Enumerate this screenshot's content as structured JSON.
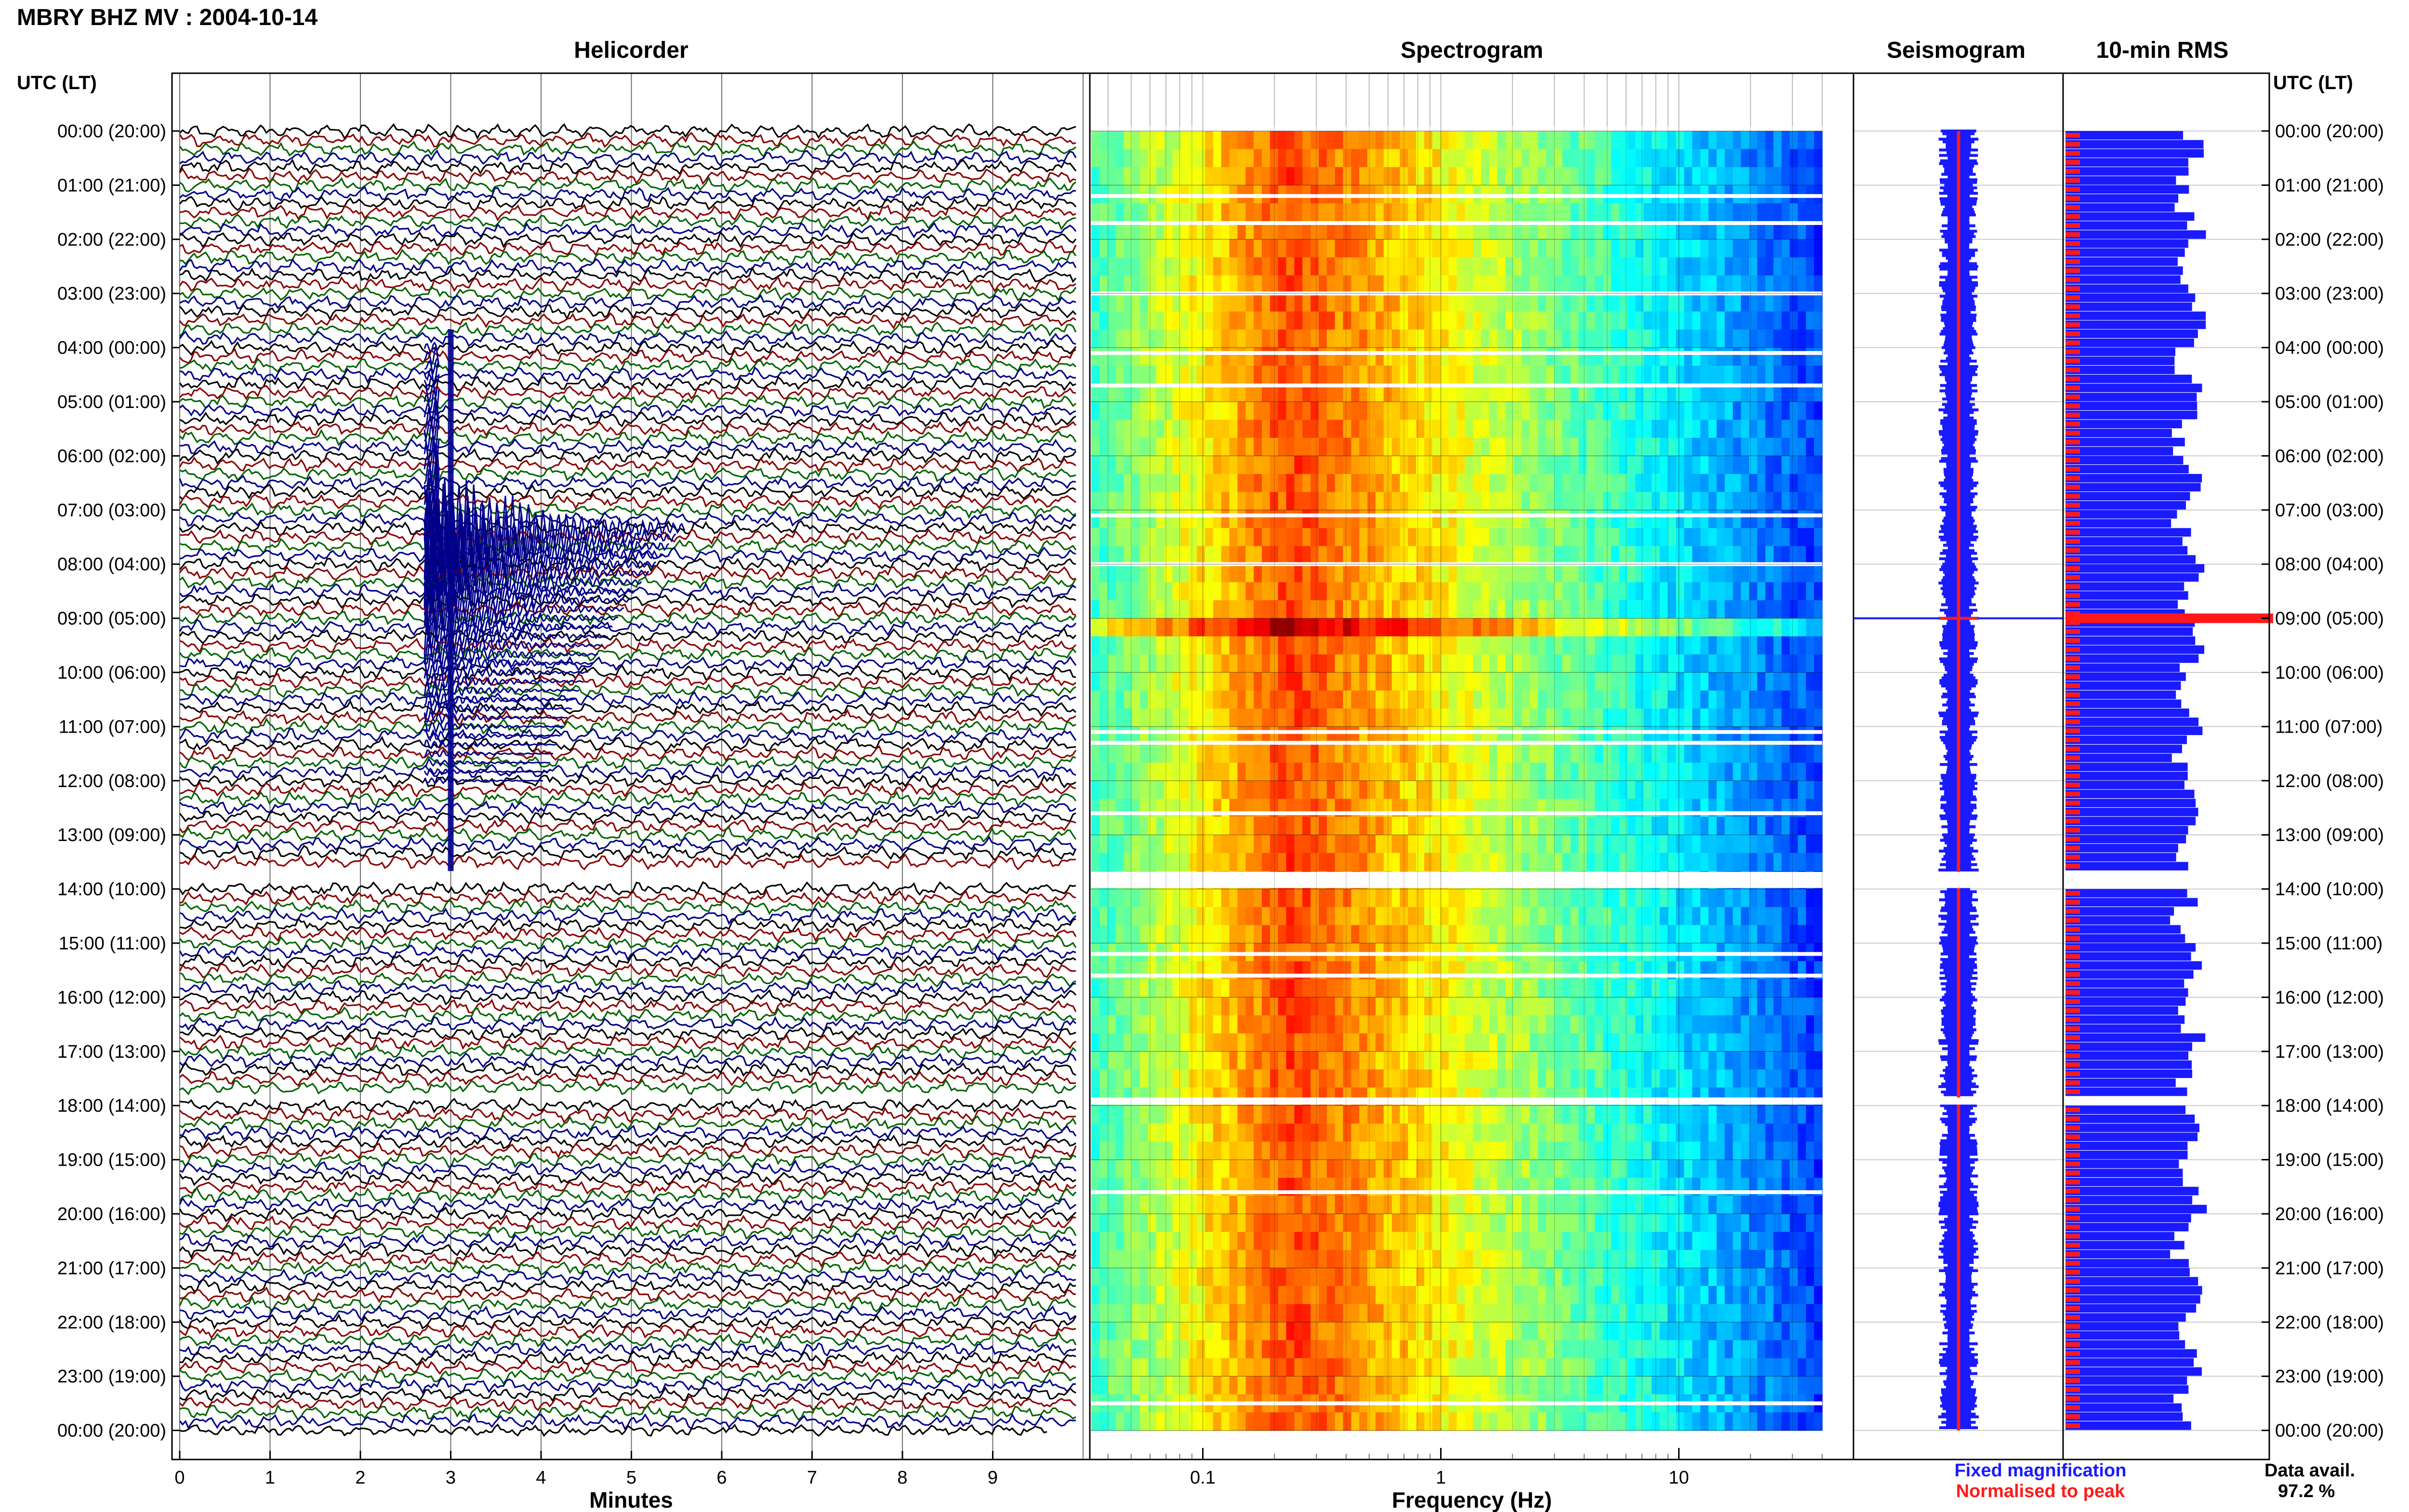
{
  "title": "MBRY BHZ MV : 2004-10-14",
  "panels": {
    "helicorder": "Helicorder",
    "spectrogram": "Spectrogram",
    "seismogram": "Seismogram",
    "rms": "10-min RMS"
  },
  "time_axis_label": "UTC (LT)",
  "time_labels": [
    "00:00 (20:00)",
    "01:00 (21:00)",
    "02:00 (22:00)",
    "03:00 (23:00)",
    "04:00 (00:00)",
    "05:00 (01:00)",
    "06:00 (02:00)",
    "07:00 (03:00)",
    "08:00 (04:00)",
    "09:00 (05:00)",
    "10:00 (06:00)",
    "11:00 (07:00)",
    "12:00 (08:00)",
    "13:00 (09:00)",
    "14:00 (10:00)",
    "15:00 (11:00)",
    "16:00 (12:00)",
    "17:00 (13:00)",
    "18:00 (14:00)",
    "19:00 (15:00)",
    "20:00 (16:00)",
    "21:00 (17:00)",
    "22:00 (18:00)",
    "23:00 (19:00)",
    "00:00 (20:00)"
  ],
  "legend": {
    "fixed": "Fixed magnification",
    "normalised": "Normalised to peak",
    "fixed_color": "#1a1aff",
    "normalised_color": "#ff1a1a"
  },
  "availability": {
    "label": "Data avail.",
    "value": "97.2 %"
  },
  "colors": {
    "trace_cycle": [
      "#000000",
      "#8b0000",
      "#006400",
      "#00008b"
    ],
    "event": "#00008b",
    "rms_fixed": "#1a1aff",
    "rms_normalised": "#ff1a1a"
  },
  "chart_data": [
    {
      "type": "line",
      "panel": "helicorder",
      "xlabel": "Minutes",
      "x_ticks": [
        0,
        1,
        2,
        3,
        4,
        5,
        6,
        7,
        8,
        9
      ],
      "xlim": [
        0,
        10
      ],
      "lines_per_hour": 6,
      "hours": 24,
      "event": {
        "hour_utc": "09:00",
        "minute": 3.0
      },
      "data_gaps_utc": [
        "13:40-13:50",
        "17:50-18:00"
      ]
    },
    {
      "type": "heatmap",
      "panel": "spectrogram",
      "xlabel": "Frequency (Hz)",
      "x_scale": "log",
      "x_ticks": [
        0.1,
        1,
        10
      ],
      "xlim": [
        0.03,
        50
      ],
      "peak_frequency_hz": 0.25,
      "data_gaps_utc": [
        "13:40-13:50",
        "17:50-18:00"
      ]
    },
    {
      "type": "line",
      "panel": "seismogram",
      "event_hour_utc": "09:00"
    },
    {
      "type": "bar",
      "panel": "10-min RMS",
      "series": [
        {
          "name": "Fixed magnification"
        },
        {
          "name": "Normalised to peak"
        }
      ],
      "event_hour_utc": "09:00"
    }
  ]
}
